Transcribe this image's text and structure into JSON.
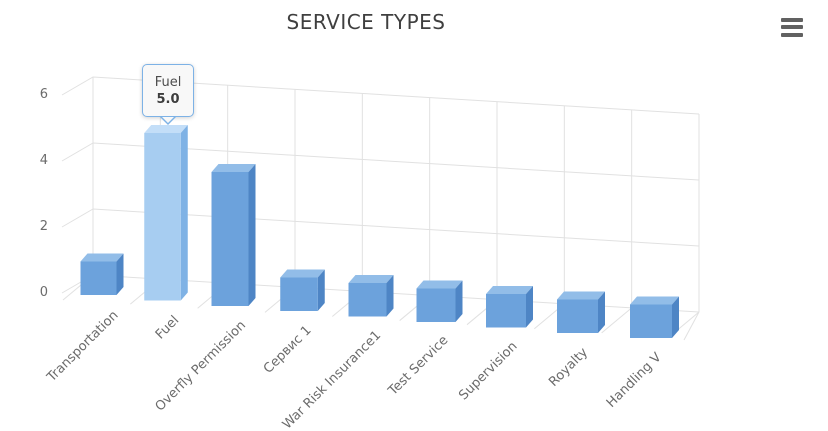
{
  "title": "SERVICE TYPES",
  "menu": {
    "icon": "hamburger-icon",
    "tooltip_label": "Chart context menu"
  },
  "tooltip": {
    "category": "Fuel",
    "value": "5.0"
  },
  "y_axis": {
    "tick_labels": [
      "0",
      "2",
      "4",
      "6"
    ]
  },
  "chart_data": {
    "type": "bar",
    "variant": "3d-column",
    "title": "SERVICE TYPES",
    "categories": [
      "Transportation",
      "Fuel",
      "Overfly Permission",
      "Сервис 1",
      "War Risk Insurance1",
      "Test Service",
      "Supervision",
      "Royalty",
      "Handling V"
    ],
    "values": [
      1,
      5,
      4,
      1,
      1,
      1,
      1,
      1,
      1
    ],
    "highlighted_category": "Fuel",
    "tooltip_on": {
      "category": "Fuel",
      "value": 5.0
    },
    "xlabel": "",
    "ylabel": "",
    "ylim": [
      0,
      6
    ],
    "yticks": [
      0,
      2,
      4,
      6
    ],
    "grid": true,
    "legend": false
  },
  "colors": {
    "bar_front": "#6ca2dc",
    "bar_top": "#92bde8",
    "bar_side": "#4e85c5",
    "bar_highlight_front": "#a7cdf1",
    "bar_highlight_top": "#c3def8",
    "bar_highlight_side": "#7fb2e5",
    "grid": "#e1e1e1",
    "axis_label": "#6b6b6b",
    "title_color": "#3f3f3f",
    "tooltip_border": "#7db2e6",
    "tooltip_bg": "#f8f8f8",
    "menu_icon": "#616161"
  }
}
